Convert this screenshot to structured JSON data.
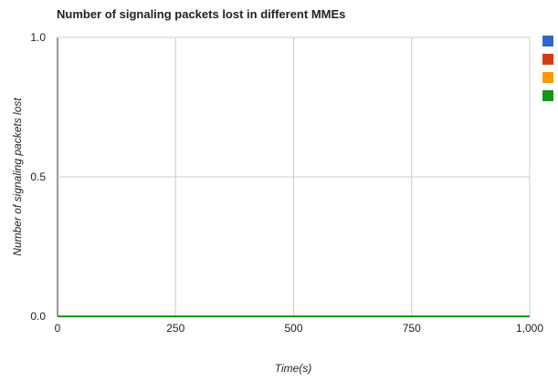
{
  "chart_data": {
    "type": "line",
    "title": "Number of signaling packets lost in different MMEs",
    "xlabel": "Time(s)",
    "ylabel": "Number of signaling packets lost",
    "xlim": [
      0,
      1000
    ],
    "ylim": [
      0,
      1
    ],
    "x_ticks": [
      0,
      250,
      500,
      750,
      1000
    ],
    "x_tick_labels": [
      "0",
      "250",
      "500",
      "750",
      "1,000"
    ],
    "y_ticks": [
      0,
      0.5,
      1
    ],
    "y_tick_labels": [
      "0.0",
      "0.5",
      "1.0"
    ],
    "grid": true,
    "legend_position": "right",
    "series": [
      {
        "color": "#3366cc",
        "x": [
          0,
          1000
        ],
        "y": [
          0,
          0
        ]
      },
      {
        "color": "#dc3912",
        "x": [
          0,
          1000
        ],
        "y": [
          0,
          0
        ]
      },
      {
        "color": "#ff9900",
        "x": [
          0,
          1000
        ],
        "y": [
          0,
          0
        ]
      },
      {
        "color": "#109618",
        "x": [
          0,
          1000
        ],
        "y": [
          0,
          0
        ]
      }
    ]
  },
  "colors": {
    "grid": "#cccccc",
    "axis": "#333333",
    "text": "#222222",
    "background": "#ffffff"
  }
}
